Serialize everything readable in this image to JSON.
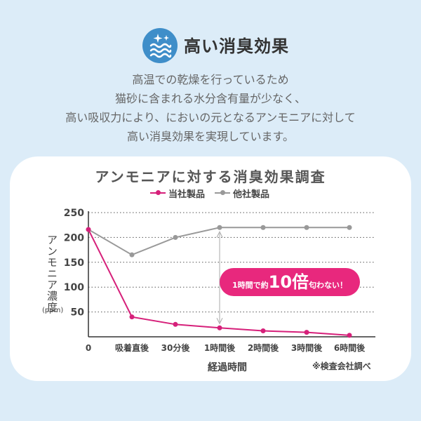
{
  "header": {
    "title": "高い消臭効果",
    "icon": "deodorize-sparkle-wave-icon",
    "icon_color": "#3f8ec9"
  },
  "description": [
    "高温での乾燥を行っているため",
    "猫砂に含まれる水分含有量が少なく、",
    "高い吸収力により、においの元となるアンモニアに対して",
    "高い消臭効果を実現しています。"
  ],
  "callout": {
    "prefix": "1時間で約",
    "number": "10倍",
    "suffix": "匂わない！"
  },
  "source_note": "※検査会社調べ",
  "chart_data": {
    "type": "line",
    "title": "アンモニアに対する消臭効果調査",
    "categories": [
      "0",
      "吸着直後",
      "30分後",
      "1時間後",
      "2時間後",
      "3時間後",
      "6時間後"
    ],
    "series": [
      {
        "name": "当社製品",
        "color": "#d6207a",
        "values": [
          216,
          40,
          25,
          18,
          12,
          9,
          3
        ]
      },
      {
        "name": "他社製品",
        "color": "#999999",
        "values": [
          216,
          165,
          200,
          220,
          220,
          220,
          220
        ]
      }
    ],
    "xlabel": "経過時間",
    "ylabel": "アンモニア濃度",
    "yunit": "(ppm)",
    "yticks": [
      50,
      100,
      150,
      200,
      250
    ],
    "ylim": [
      0,
      250
    ],
    "grid": true,
    "legend": "top-center"
  }
}
